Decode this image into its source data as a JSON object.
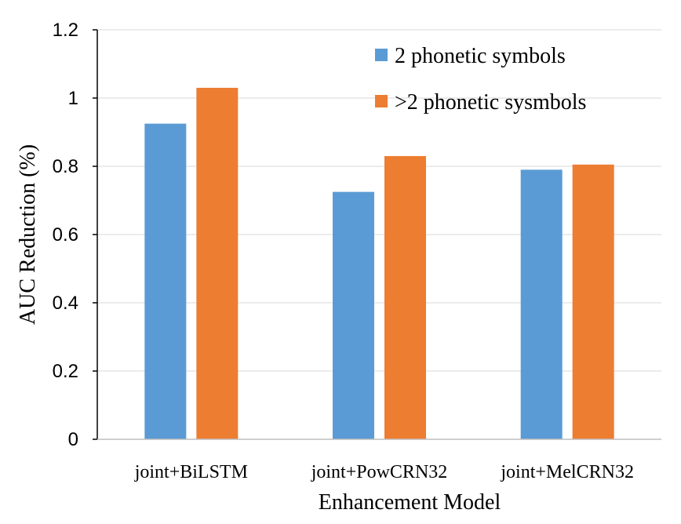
{
  "chart_data": {
    "type": "bar",
    "title": "",
    "xlabel": "Enhancement Model",
    "ylabel": "AUC Reduction (%)",
    "categories": [
      "joint+BiLSTM",
      "joint+PowCRN32",
      "joint+MelCRN32"
    ],
    "series": [
      {
        "name": "2 phonetic symbols",
        "values": [
          0.925,
          0.725,
          0.79
        ],
        "color": "#5b9bd5"
      },
      {
        "name": ">2 phonetic sysmbols",
        "values": [
          1.03,
          0.83,
          0.805
        ],
        "color": "#ed7d31"
      }
    ],
    "ylim": [
      0,
      1.2
    ],
    "yticks": [
      "0",
      "0.2",
      "0.4",
      "0.6",
      "0.8",
      "1",
      "1.2"
    ],
    "grid": true,
    "legend_position": "top-right"
  }
}
